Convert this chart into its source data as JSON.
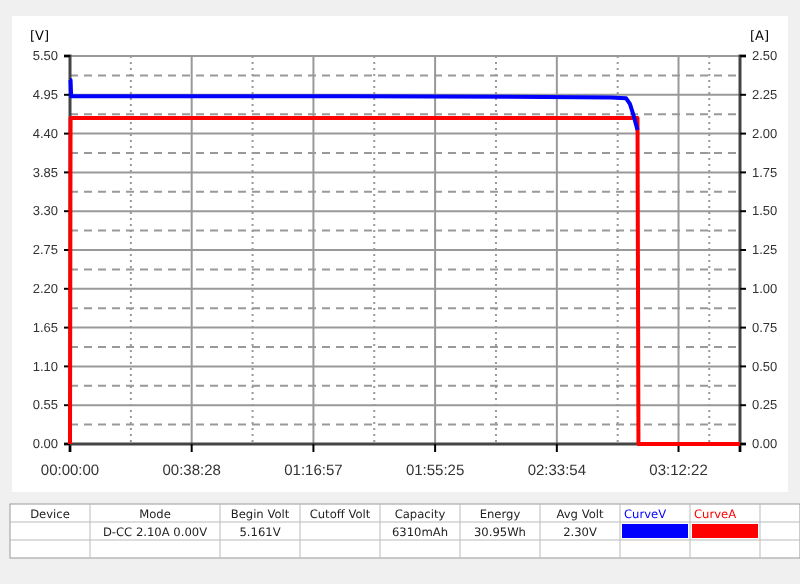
{
  "chart_data": {
    "type": "line",
    "ylabel": "[V]",
    "y2label": "[A]",
    "xlim": [
      0,
      3.53
    ],
    "xticks": [
      {
        "value": 0,
        "label": "00:00:00"
      },
      {
        "value": 0.6411,
        "label": "00:38:28"
      },
      {
        "value": 1.2825,
        "label": "01:16:57"
      },
      {
        "value": 1.9236,
        "label": "01:55:25"
      },
      {
        "value": 2.565,
        "label": "02:33:54"
      },
      {
        "value": 3.2061,
        "label": "03:12:22"
      },
      {
        "value": 3.53,
        "label": null
      }
    ],
    "ylim": [
      0,
      5.5
    ],
    "yticks": [
      {
        "value": 0,
        "label": "0.00"
      },
      {
        "value": 0.55,
        "label": "0.55"
      },
      {
        "value": 1.1,
        "label": "1.10"
      },
      {
        "value": 1.65,
        "label": "1.65"
      },
      {
        "value": 2.2,
        "label": "2.20"
      },
      {
        "value": 2.75,
        "label": "2.75"
      },
      {
        "value": 3.3,
        "label": "3.30"
      },
      {
        "value": 3.85,
        "label": "3.85"
      },
      {
        "value": 4.4,
        "label": "4.40"
      },
      {
        "value": 4.95,
        "label": "4.95"
      },
      {
        "value": 5.5,
        "label": "5.50"
      }
    ],
    "y2lim": [
      0,
      2.5
    ],
    "y2ticks": [
      {
        "value": 0,
        "label": "0.00"
      },
      {
        "value": 0.25,
        "label": "0.25"
      },
      {
        "value": 0.5,
        "label": "0.50"
      },
      {
        "value": 0.75,
        "label": "0.75"
      },
      {
        "value": 1,
        "label": "1.00"
      },
      {
        "value": 1.25,
        "label": "1.25"
      },
      {
        "value": 1.5,
        "label": "1.50"
      },
      {
        "value": 1.75,
        "label": "1.75"
      },
      {
        "value": 2,
        "label": "2.00"
      },
      {
        "value": 2.25,
        "label": "2.25"
      },
      {
        "value": 2.5,
        "label": "2.50"
      }
    ],
    "grid": true,
    "legend": "bottom",
    "series": [
      {
        "name": "CurveV",
        "color": "#0000ff",
        "x": [
          0,
          0.003,
          0.006,
          1.5,
          2.5,
          2.85,
          2.93,
          2.95,
          2.97,
          2.98,
          2.99
        ],
        "values": [
          5.16,
          5.16,
          4.93,
          4.93,
          4.92,
          4.91,
          4.9,
          4.82,
          4.65,
          4.55,
          4.45
        ]
      },
      {
        "name": "CurveA",
        "color": "#ff0000",
        "axis": "y2",
        "x": [
          0,
          0.003,
          2.99,
          2.995,
          3.53
        ],
        "values": [
          0,
          2.1,
          2.1,
          0,
          0
        ]
      }
    ],
    "annotations": [
      "Device",
      "Mode",
      "Begin Volt",
      "Cutoff Volt",
      "Capacity",
      "Energy",
      "Avg Volt",
      "D-CC 2.10A 0.00V",
      "5.161V",
      "6310mAh",
      "30.95Wh",
      "2.30V"
    ]
  }
}
